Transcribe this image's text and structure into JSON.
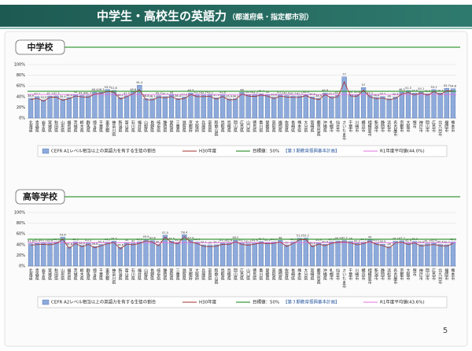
{
  "header": {
    "title": "中学生・高校生の英語力",
    "subtitle": "（都道府県・指定都市別）"
  },
  "page_number": "5",
  "chart_data": [
    {
      "type": "bar",
      "section": "中学校",
      "categories": [
        "北海道",
        "青森県",
        "岩手県",
        "宮城県",
        "秋田県",
        "山形県",
        "福島県",
        "茨城県",
        "栃木県",
        "群馬県",
        "埼玉県",
        "千葉県",
        "東京都",
        "神奈川県",
        "新潟県",
        "富山県",
        "石川県",
        "福井県",
        "山梨県",
        "長野県",
        "岐阜県",
        "静岡県",
        "愛知県",
        "三重県",
        "滋賀県",
        "京都府",
        "大阪府",
        "兵庫県",
        "奈良県",
        "和歌山県",
        "鳥取県",
        "島根県",
        "岡山県",
        "広島県",
        "山口県",
        "徳島県",
        "香川県",
        "愛媛県",
        "高知県",
        "福岡県",
        "佐賀県",
        "長崎県",
        "熊本県",
        "大分県",
        "宮崎県",
        "鹿児島県",
        "沖縄県",
        "札幌市",
        "仙台市",
        "さいたま市",
        "千葉市",
        "川崎市",
        "横浜市",
        "相模原市",
        "新潟市",
        "静岡市",
        "浜松市",
        "名古屋市",
        "京都市",
        "大阪市",
        "堺市",
        "神戸市",
        "岡山市",
        "広島市",
        "北九州市",
        "福岡市",
        "熊本市"
      ],
      "series": [
        {
          "name": "CEFR A1レベル相当以上の英語力を有する生徒の割合",
          "color": "#8eaadb",
          "values": [
            36.9,
            40.1,
            33.9,
            41.1,
            41.3,
            35.4,
            38.6,
            44.0,
            41.9,
            41.7,
            48.4,
            48.3,
            53.3,
            51.6,
            38.1,
            41.5,
            48.8,
            61.4,
            36.6,
            36.1,
            41.7,
            40.2,
            43.0,
            36.4,
            39.2,
            46.9,
            43.5,
            42.7,
            43.2,
            37.9,
            43.6,
            35.9,
            36.2,
            48.0,
            44.3,
            43.3,
            45.4,
            44.0,
            38.8,
            43.2,
            41.9,
            41.2,
            41.3,
            44.4,
            39.5,
            36.9,
            46.8,
            40.2,
            42.5,
            77.0,
            44.0,
            43.8,
            57.0,
            42.1,
            38.6,
            40.2,
            36.0,
            39.5,
            48.5,
            51.5,
            46.6,
            50.1,
            45.5,
            53.1,
            46.6,
            55.7,
            54.8
          ]
        },
        {
          "name": "H30年度",
          "color": "#a0302c",
          "values": [
            34.1,
            37.2,
            31.5,
            38.9,
            39.0,
            33.2,
            36.1,
            41.2,
            39.5,
            38.8,
            45.2,
            46.0,
            49.8,
            48.1,
            35.6,
            39.9,
            45.5,
            53.0,
            34.0,
            33.8,
            39.1,
            37.6,
            40.2,
            34.8,
            36.5,
            44.1,
            40.0,
            39.9,
            40.6,
            35.2,
            40.3,
            33.7,
            34.5,
            45.0,
            41.1,
            40.2,
            42.8,
            41.0,
            36.2,
            40.8,
            39.3,
            38.4,
            38.6,
            41.8,
            36.9,
            34.3,
            43.9,
            37.5,
            39.8,
            67.6,
            41.2,
            40.7,
            52.1,
            39.5,
            36.1,
            37.5,
            33.8,
            36.7,
            45.0,
            47.8,
            43.1,
            47.2,
            42.5,
            49.6,
            43.8,
            51.0,
            50.7
          ]
        }
      ],
      "target": {
        "name": "目標値：50%",
        "note": "【第３期教育振興基本計画】",
        "value": 50,
        "color": "#3c9a3c"
      },
      "average": {
        "name": "R1年度平均値(44.0%)",
        "value": 44.0,
        "color": "#e070e0"
      },
      "ylim": [
        0,
        100
      ],
      "yticks": [
        {
          "value": 0,
          "label": "0%"
        },
        {
          "value": 20,
          "label": "20%"
        },
        {
          "value": 40,
          "label": "40%"
        },
        {
          "value": 60,
          "label": "60%"
        },
        {
          "value": 80,
          "label": "80%"
        },
        {
          "value": 100,
          "label": "100%"
        }
      ],
      "grid": true
    },
    {
      "type": "bar",
      "section": "高等学校",
      "categories": [
        "北海道",
        "青森県",
        "岩手県",
        "宮城県",
        "秋田県",
        "山形県",
        "福島県",
        "茨城県",
        "栃木県",
        "群馬県",
        "埼玉県",
        "千葉県",
        "東京都",
        "神奈川県",
        "新潟県",
        "富山県",
        "石川県",
        "福井県",
        "山梨県",
        "長野県",
        "岐阜県",
        "静岡県",
        "愛知県",
        "三重県",
        "滋賀県",
        "京都府",
        "大阪府",
        "兵庫県",
        "奈良県",
        "和歌山県",
        "鳥取県",
        "島根県",
        "岡山県",
        "広島県",
        "山口県",
        "徳島県",
        "香川県",
        "愛媛県",
        "高知県",
        "福岡県",
        "佐賀県",
        "長崎県",
        "熊本県",
        "大分県",
        "宮崎県",
        "鹿児島県",
        "沖縄県",
        "札幌市",
        "仙台市",
        "さいたま市",
        "千葉市",
        "川崎市",
        "横浜市",
        "相模原市",
        "新潟市",
        "静岡市",
        "浜松市",
        "名古屋市",
        "京都市",
        "大阪市",
        "堺市",
        "神戸市",
        "岡山市",
        "広島市",
        "北九州市",
        "福岡市",
        "熊本市"
      ],
      "series": [
        {
          "name": "CEFR A2レベル相当以上の英語力を有する生徒の割合",
          "color": "#8eaadb",
          "values": [
            41.6,
            42.4,
            43.1,
            42.8,
            44.9,
            53.8,
            35.8,
            44.9,
            38.6,
            43.3,
            36.6,
            40.3,
            44.5,
            46.5,
            34.8,
            44.0,
            42.0,
            45.2,
            49.9,
            47.6,
            40.2,
            57.5,
            46.5,
            44.3,
            58.4,
            47.9,
            44.7,
            39.4,
            39.0,
            39.7,
            43.3,
            42.9,
            48.2,
            43.1,
            41.5,
            43.6,
            45.7,
            44.2,
            44.9,
            48.0,
            39.0,
            44.9,
            51.9,
            52.2,
            38.6,
            43.9,
            40.6,
            45.1,
            46.9,
            47.7,
            46.0,
            42.2,
            44.6,
            49.0,
            43.2,
            40.9,
            36.0,
            46.3,
            47.2,
            42.9,
            45.9,
            39.8,
            41.7,
            42.9,
            40.4,
            39.7,
            44.9
          ]
        },
        {
          "name": "H30年度",
          "color": "#a0302c",
          "values": [
            39.0,
            40.1,
            40.5,
            39.6,
            42.1,
            50.2,
            33.0,
            42.3,
            35.9,
            40.5,
            34.0,
            37.9,
            41.8,
            43.9,
            32.1,
            41.0,
            39.6,
            42.3,
            47.0,
            44.9,
            37.8,
            54.2,
            43.8,
            41.5,
            55.1,
            44.9,
            42.1,
            36.8,
            36.2,
            37.0,
            40.7,
            40.1,
            45.5,
            40.3,
            38.9,
            41.0,
            43.1,
            41.5,
            42.3,
            45.2,
            36.4,
            42.0,
            49.1,
            49.5,
            35.9,
            41.2,
            37.8,
            42.3,
            44.2,
            45.0,
            43.4,
            39.5,
            41.9,
            46.2,
            40.6,
            38.2,
            33.5,
            43.6,
            44.5,
            40.1,
            43.2,
            37.1,
            39.0,
            40.2,
            37.8,
            37.0,
            42.1
          ]
        }
      ],
      "target": {
        "name": "目標値：50%",
        "note": "【第３期教育振興基本計画】",
        "value": 50,
        "color": "#3c9a3c"
      },
      "average": {
        "name": "R1年度平均値(43.6%)",
        "value": 43.6,
        "color": "#e070e0"
      },
      "ylim": [
        0,
        100
      ],
      "yticks": [
        {
          "value": 0,
          "label": "0%"
        },
        {
          "value": 20,
          "label": "20%"
        },
        {
          "value": 40,
          "label": "40%"
        },
        {
          "value": 60,
          "label": "60%"
        },
        {
          "value": 80,
          "label": "80%"
        },
        {
          "value": 100,
          "label": "100%"
        }
      ],
      "grid": true
    }
  ]
}
